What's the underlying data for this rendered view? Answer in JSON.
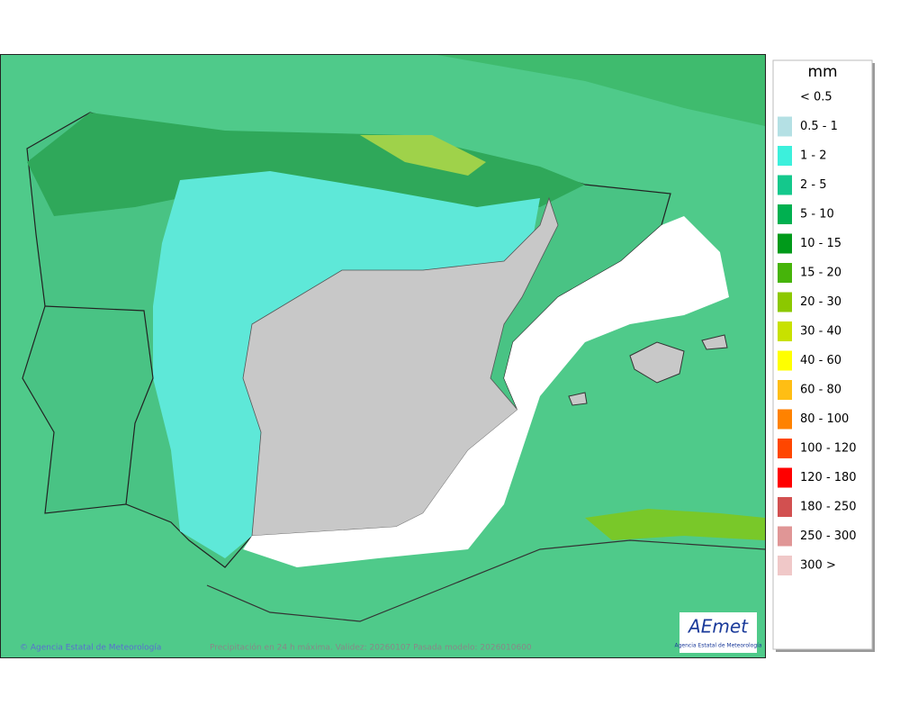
{
  "legend": {
    "unit": "mm",
    "items": [
      {
        "label": "< 0.5",
        "color": "#ffffff"
      },
      {
        "label": "0.5 - 1",
        "color": "#b4e0e4"
      },
      {
        "label": "1 - 2",
        "color": "#3cf0dc"
      },
      {
        "label": "2 - 5",
        "color": "#14c88c"
      },
      {
        "label": "5 - 10",
        "color": "#00b050"
      },
      {
        "label": "10 - 15",
        "color": "#009a1a"
      },
      {
        "label": "15 - 20",
        "color": "#46b40a"
      },
      {
        "label": "20 - 30",
        "color": "#8cc800"
      },
      {
        "label": "30 - 40",
        "color": "#c8e100"
      },
      {
        "label": "40 - 60",
        "color": "#ffff00"
      },
      {
        "label": "60 - 80",
        "color": "#ffbe14"
      },
      {
        "label": "80 - 100",
        "color": "#ff8200"
      },
      {
        "label": "100 - 120",
        "color": "#ff4600"
      },
      {
        "label": "120 - 180",
        "color": "#ff0000"
      },
      {
        "label": "180 - 250",
        "color": "#d25050"
      },
      {
        "label": "250 - 300",
        "color": "#e09696"
      },
      {
        "label": "300 >",
        "color": "#f0c8c8"
      }
    ]
  },
  "footer": {
    "copyright": "© Agencia Estatal de Meteorología",
    "caption": "Precipitación en 24 h máxima. Validez: 20260107 Pasada modelo: 2026010600"
  },
  "logo": {
    "name": "AEmet",
    "subtitle": "Agencia Estatal de Meteorología"
  }
}
